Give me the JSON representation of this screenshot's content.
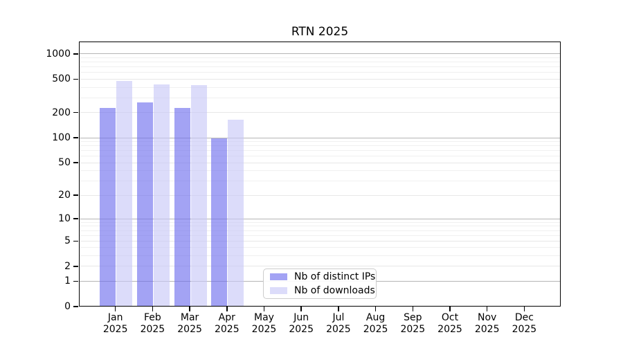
{
  "chart_data": {
    "type": "bar",
    "title": "RTN 2025",
    "x_months": [
      "Jan",
      "Feb",
      "Mar",
      "Apr",
      "May",
      "Jun",
      "Jul",
      "Aug",
      "Sep",
      "Oct",
      "Nov",
      "Dec"
    ],
    "x_year": "2025",
    "series": [
      {
        "name": "Nb of distinct IPs",
        "color": "rgba(106,106,238,0.62)",
        "values": [
          230,
          265,
          230,
          99,
          null,
          null,
          null,
          null,
          null,
          null,
          null,
          null
        ]
      },
      {
        "name": "Nb of downloads",
        "color": "rgba(198,198,247,0.62)",
        "values": [
          480,
          435,
          425,
          165,
          null,
          null,
          null,
          null,
          null,
          null,
          null,
          null
        ]
      }
    ],
    "yscale": "log10(value+1)",
    "yticks": [
      0,
      1,
      2,
      5,
      10,
      20,
      50,
      100,
      200,
      500,
      1000
    ],
    "ylim": [
      0,
      1400
    ],
    "grid": true,
    "legend_position": "lower-center"
  }
}
